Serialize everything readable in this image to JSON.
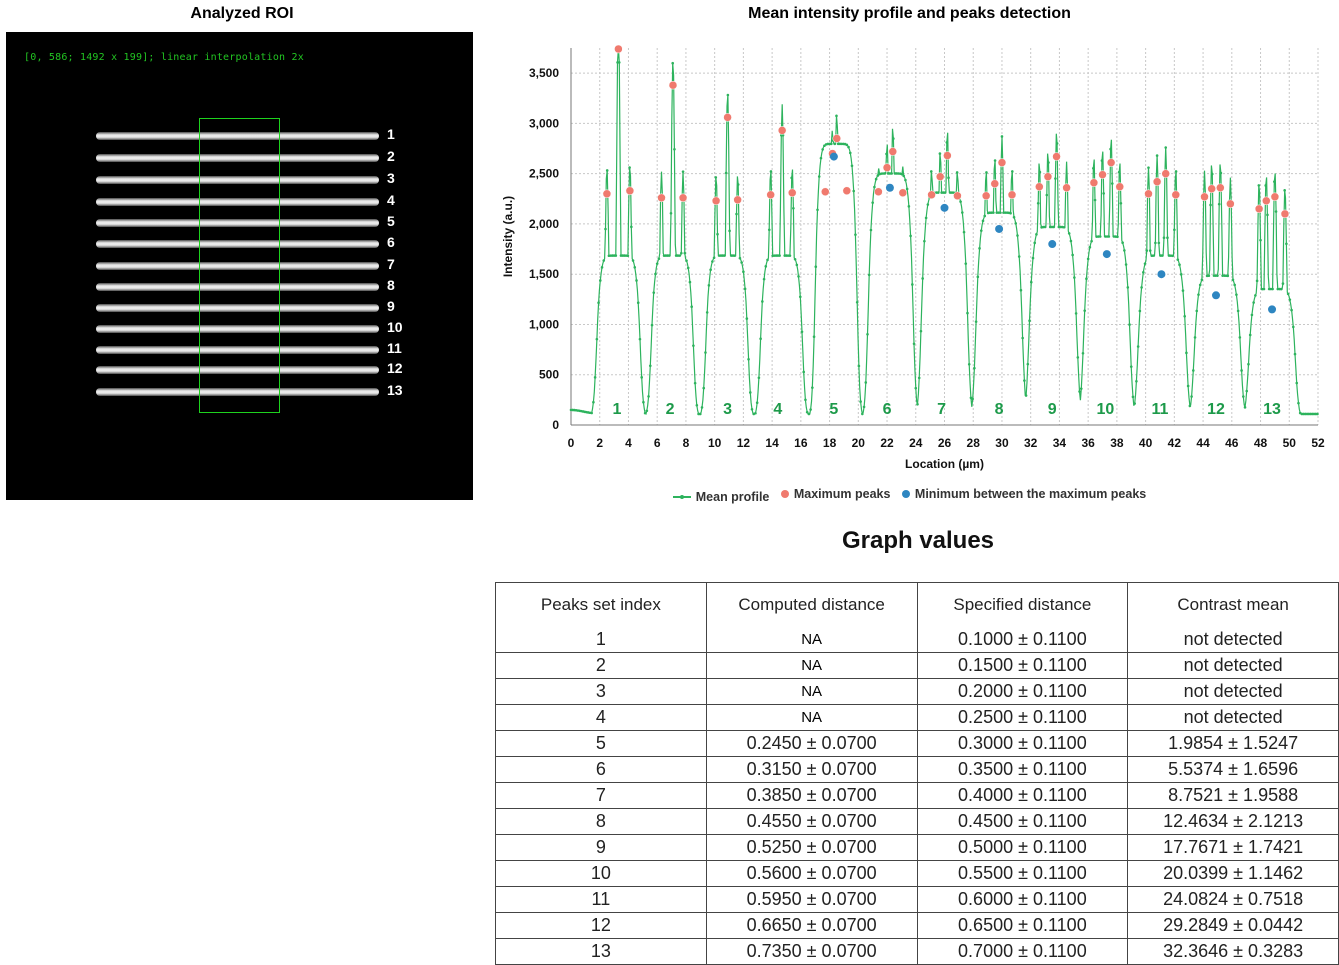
{
  "roi": {
    "title": "Analyzed ROI",
    "caption": "[0, 586; 1492 x 199]; linear interpolation 2x",
    "line_labels": [
      "1",
      "2",
      "3",
      "4",
      "5",
      "6",
      "7",
      "8",
      "9",
      "10",
      "11",
      "12",
      "13"
    ]
  },
  "legend": {
    "mean_profile": "Mean profile",
    "maximum_peaks": "Maximum peaks",
    "minimum_between": "Minimum between the maximum peaks"
  },
  "colors": {
    "profile": "#2db35d",
    "max_peak": "#f07a6e",
    "min_peak": "#2e86c1",
    "roi_box": "#1ed21e",
    "group_label": "#1d9a4a"
  },
  "chart_data": {
    "type": "line",
    "title": "Mean intensity profile and peaks detection",
    "xlabel": "Location (µm)",
    "ylabel": "Intensity (a.u.)",
    "xlim": [
      0,
      52
    ],
    "ylim": [
      0,
      3750
    ],
    "x_ticks": [
      0,
      2,
      4,
      6,
      8,
      10,
      12,
      14,
      16,
      18,
      20,
      22,
      24,
      26,
      28,
      30,
      32,
      34,
      36,
      38,
      40,
      42,
      44,
      46,
      48,
      50,
      52
    ],
    "y_ticks": [
      0,
      500,
      1000,
      1500,
      2000,
      2500,
      3000,
      3500
    ],
    "y_tick_labels": [
      "0",
      "500",
      "1,000",
      "1,500",
      "2,000",
      "2,500",
      "3,000",
      "3,500"
    ],
    "grid": true,
    "legend_position": "bottom",
    "groups": [
      {
        "label": "1",
        "x": 3.2,
        "peaks": [
          {
            "x": 2.5,
            "y": 2300
          },
          {
            "x": 3.3,
            "y": 3740
          },
          {
            "x": 4.1,
            "y": 2330
          }
        ],
        "minimum": null
      },
      {
        "label": "2",
        "x": 6.9,
        "peaks": [
          {
            "x": 6.3,
            "y": 2260
          },
          {
            "x": 7.1,
            "y": 3380
          },
          {
            "x": 7.8,
            "y": 2260
          }
        ],
        "minimum": null
      },
      {
        "label": "3",
        "x": 10.9,
        "peaks": [
          {
            "x": 10.1,
            "y": 2230
          },
          {
            "x": 10.9,
            "y": 3060
          },
          {
            "x": 11.6,
            "y": 2240
          }
        ],
        "minimum": null
      },
      {
        "label": "4",
        "x": 14.4,
        "peaks": [
          {
            "x": 13.9,
            "y": 2290
          },
          {
            "x": 14.7,
            "y": 2930
          },
          {
            "x": 15.4,
            "y": 2310
          }
        ],
        "minimum": null
      },
      {
        "label": "5",
        "x": 18.3,
        "peaks": [
          {
            "x": 17.7,
            "y": 2320
          },
          {
            "x": 18.2,
            "y": 2700
          },
          {
            "x": 18.5,
            "y": 2850
          },
          {
            "x": 19.2,
            "y": 2330
          }
        ],
        "minimum": {
          "x": 18.3,
          "y": 2670
        }
      },
      {
        "label": "6",
        "x": 22.0,
        "peaks": [
          {
            "x": 21.4,
            "y": 2320
          },
          {
            "x": 22.0,
            "y": 2560
          },
          {
            "x": 22.4,
            "y": 2720
          },
          {
            "x": 23.1,
            "y": 2310
          }
        ],
        "minimum": {
          "x": 22.2,
          "y": 2360
        }
      },
      {
        "label": "7",
        "x": 25.8,
        "peaks": [
          {
            "x": 25.1,
            "y": 2290
          },
          {
            "x": 25.7,
            "y": 2470
          },
          {
            "x": 26.2,
            "y": 2680
          },
          {
            "x": 26.9,
            "y": 2280
          }
        ],
        "minimum": {
          "x": 26.0,
          "y": 2160
        }
      },
      {
        "label": "8",
        "x": 29.8,
        "peaks": [
          {
            "x": 28.9,
            "y": 2280
          },
          {
            "x": 29.5,
            "y": 2400
          },
          {
            "x": 30.0,
            "y": 2610
          },
          {
            "x": 30.7,
            "y": 2290
          }
        ],
        "minimum": {
          "x": 29.8,
          "y": 1950
        }
      },
      {
        "label": "9",
        "x": 33.5,
        "peaks": [
          {
            "x": 32.6,
            "y": 2370
          },
          {
            "x": 33.2,
            "y": 2470
          },
          {
            "x": 33.8,
            "y": 2670
          },
          {
            "x": 34.5,
            "y": 2360
          }
        ],
        "minimum": {
          "x": 33.5,
          "y": 1800
        }
      },
      {
        "label": "10",
        "x": 37.2,
        "peaks": [
          {
            "x": 36.4,
            "y": 2410
          },
          {
            "x": 37.0,
            "y": 2490
          },
          {
            "x": 37.6,
            "y": 2610
          },
          {
            "x": 38.2,
            "y": 2370
          }
        ],
        "minimum": {
          "x": 37.3,
          "y": 1700
        }
      },
      {
        "label": "11",
        "x": 41.0,
        "peaks": [
          {
            "x": 40.2,
            "y": 2300
          },
          {
            "x": 40.8,
            "y": 2420
          },
          {
            "x": 41.4,
            "y": 2500
          },
          {
            "x": 42.1,
            "y": 2290
          }
        ],
        "minimum": {
          "x": 41.1,
          "y": 1500
        }
      },
      {
        "label": "12",
        "x": 44.9,
        "peaks": [
          {
            "x": 44.1,
            "y": 2270
          },
          {
            "x": 44.6,
            "y": 2350
          },
          {
            "x": 45.2,
            "y": 2360
          },
          {
            "x": 45.9,
            "y": 2200
          }
        ],
        "minimum": {
          "x": 44.9,
          "y": 1290
        }
      },
      {
        "label": "13",
        "x": 48.8,
        "peaks": [
          {
            "x": 47.9,
            "y": 2150
          },
          {
            "x": 48.4,
            "y": 2230
          },
          {
            "x": 49.0,
            "y": 2270
          },
          {
            "x": 49.7,
            "y": 2100
          }
        ],
        "minimum": {
          "x": 48.8,
          "y": 1150
        }
      }
    ]
  },
  "table": {
    "title": "Graph values",
    "headers": [
      "Peaks set index",
      "Computed distance",
      "Specified distance",
      "Contrast mean"
    ],
    "rows": [
      [
        "1",
        "NA",
        "0.1000 ± 0.1100",
        "not detected"
      ],
      [
        "2",
        "NA",
        "0.1500 ± 0.1100",
        "not detected"
      ],
      [
        "3",
        "NA",
        "0.2000 ± 0.1100",
        "not detected"
      ],
      [
        "4",
        "NA",
        "0.2500 ± 0.1100",
        "not detected"
      ],
      [
        "5",
        "0.2450 ± 0.0700",
        "0.3000 ± 0.1100",
        "1.9854 ± 1.5247"
      ],
      [
        "6",
        "0.3150 ± 0.0700",
        "0.3500 ± 0.1100",
        "5.5374 ± 1.6596"
      ],
      [
        "7",
        "0.3850 ± 0.0700",
        "0.4000 ± 0.1100",
        "8.7521 ± 1.9588"
      ],
      [
        "8",
        "0.4550 ± 0.0700",
        "0.4500 ± 0.1100",
        "12.4634 ± 2.1213"
      ],
      [
        "9",
        "0.5250 ± 0.0700",
        "0.5000 ± 0.1100",
        "17.7671 ± 1.7421"
      ],
      [
        "10",
        "0.5600 ± 0.0700",
        "0.5500 ± 0.1100",
        "20.0399 ± 1.1462"
      ],
      [
        "11",
        "0.5950 ± 0.0700",
        "0.6000 ± 0.1100",
        "24.0824 ± 0.7518"
      ],
      [
        "12",
        "0.6650 ± 0.0700",
        "0.6500 ± 0.1100",
        "29.2849 ± 0.0442"
      ],
      [
        "13",
        "0.7350 ± 0.0700",
        "0.7000 ± 0.1100",
        "32.3646 ± 0.3283"
      ]
    ]
  }
}
